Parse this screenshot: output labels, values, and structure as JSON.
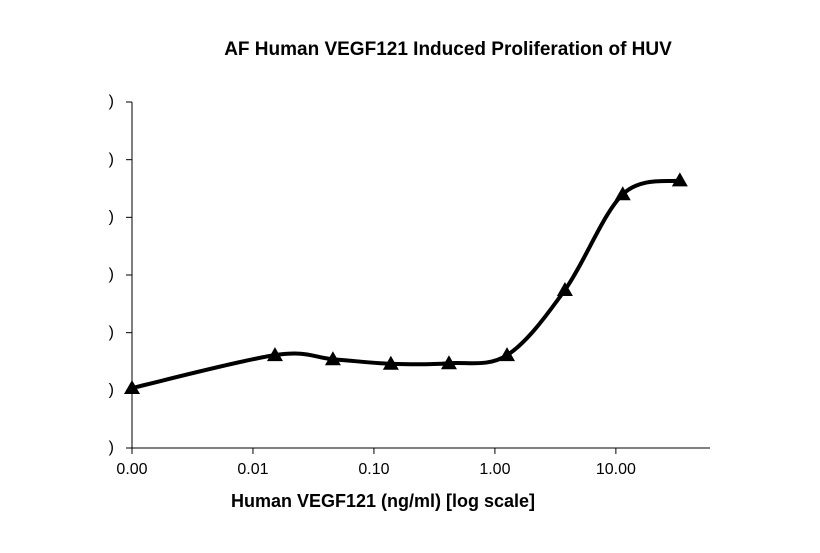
{
  "chart_data": {
    "type": "line",
    "title": "AF Human VEGF121 Induced Proliferation of HUV",
    "x_label": "Human VEGF121 (ng/ml) [log scale]",
    "x_log": true,
    "x": [
      0.001,
      0.0152,
      0.0458,
      0.138,
      0.417,
      1.26,
      3.79,
      11.4,
      33.8
    ],
    "series": [
      {
        "color": "#000000",
        "values": [
          1.04,
          1.61,
          1.54,
          1.46,
          1.47,
          1.61,
          2.74,
          4.4,
          4.64
        ]
      }
    ],
    "xlim": [
      0.001,
      60
    ],
    "xticks": [
      {
        "value": 0.001,
        "label": "0.00"
      },
      0.01,
      {
        "value": 0.1,
        "label": "0.10"
      },
      {
        "value": 1,
        "label": "1.00"
      },
      {
        "value": 10,
        "label": "10.00"
      }
    ],
    "ylim": [
      0,
      6
    ],
    "yticks": [
      {
        "value": 0,
        "label": ")"
      },
      {
        "value": 1,
        "label": ")"
      },
      {
        "value": 2,
        "label": ")"
      },
      {
        "value": 3,
        "label": ")"
      },
      {
        "value": 4,
        "label": ")"
      },
      {
        "value": 5,
        "label": ")"
      },
      {
        "value": 6,
        "label": ")"
      }
    ],
    "grid": false
  }
}
